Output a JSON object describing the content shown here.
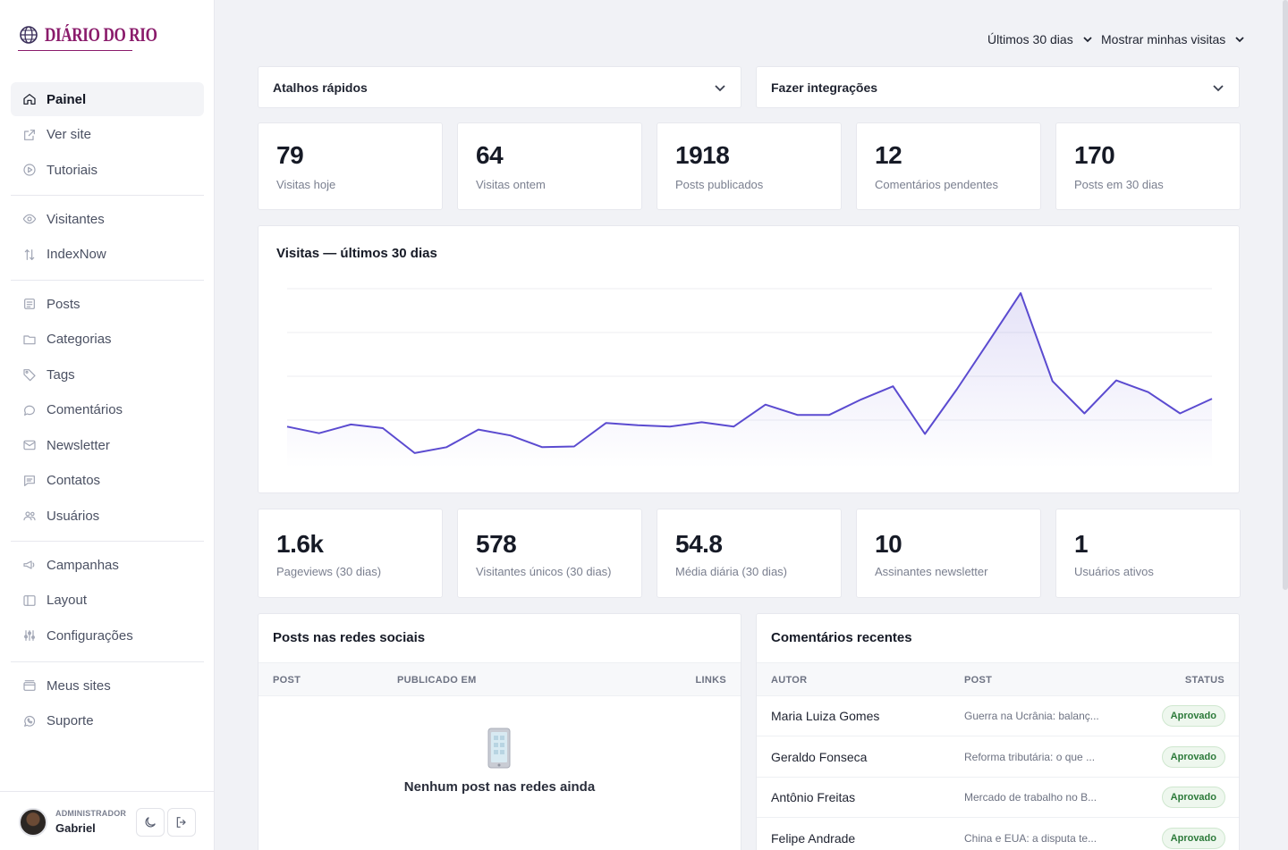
{
  "brand": {
    "name": "DIÁRIO DO RIO"
  },
  "sidebar": {
    "groups": [
      [
        {
          "label": "Painel",
          "icon": "home-icon",
          "active": true
        },
        {
          "label": "Ver site",
          "icon": "external-link-icon"
        },
        {
          "label": "Tutoriais",
          "icon": "play-circle-icon"
        }
      ],
      [
        {
          "label": "Visitantes",
          "icon": "eye-icon"
        },
        {
          "label": "IndexNow",
          "icon": "arrows-up-down-icon"
        }
      ],
      [
        {
          "label": "Posts",
          "icon": "document-list-icon"
        },
        {
          "label": "Categorias",
          "icon": "folder-icon"
        },
        {
          "label": "Tags",
          "icon": "tag-icon"
        },
        {
          "label": "Comentários",
          "icon": "speech-bubble-icon"
        },
        {
          "label": "Newsletter",
          "icon": "envelope-icon"
        },
        {
          "label": "Contatos",
          "icon": "chat-box-icon"
        },
        {
          "label": "Usuários",
          "icon": "users-icon"
        }
      ],
      [
        {
          "label": "Campanhas",
          "icon": "megaphone-icon"
        },
        {
          "label": "Layout",
          "icon": "layout-icon"
        },
        {
          "label": "Configurações",
          "icon": "sliders-icon"
        }
      ],
      [
        {
          "label": "Meus sites",
          "icon": "browser-stack-icon"
        },
        {
          "label": "Suporte",
          "icon": "whatsapp-icon"
        }
      ]
    ]
  },
  "user": {
    "role": "ADMINISTRADOR",
    "name": "Gabriel"
  },
  "filters": {
    "period": "Últimos 30 dias",
    "visits": "Mostrar minhas visitas"
  },
  "accordions": {
    "shortcuts": "Atalhos rápidos",
    "integrations": "Fazer integrações"
  },
  "stats_top": [
    {
      "value": "79",
      "label": "Visitas hoje"
    },
    {
      "value": "64",
      "label": "Visitas ontem"
    },
    {
      "value": "1918",
      "label": "Posts publicados"
    },
    {
      "value": "12",
      "label": "Comentários pendentes"
    },
    {
      "value": "170",
      "label": "Posts em 30 dias"
    }
  ],
  "chart_data": {
    "type": "area",
    "title": "Visitas — últimos 30 dias",
    "xlabel": "",
    "ylabel": "",
    "grid": true,
    "series": [
      {
        "values": [
          52,
          43,
          55,
          50,
          16,
          24,
          48,
          40,
          24,
          25,
          57,
          54,
          52,
          58,
          52,
          82,
          68,
          68,
          89,
          107,
          42,
          103,
          168,
          234,
          114,
          70,
          115,
          99,
          70,
          90
        ]
      }
    ],
    "ylim": [
      0,
      240
    ]
  },
  "stats_bottom": [
    {
      "value": "1.6k",
      "label": "Pageviews (30 dias)"
    },
    {
      "value": "578",
      "label": "Visitantes únicos (30 dias)"
    },
    {
      "value": "54.8",
      "label": "Média diária (30 dias)"
    },
    {
      "value": "10",
      "label": "Assinantes newsletter"
    },
    {
      "value": "1",
      "label": "Usuários ativos"
    }
  ],
  "social": {
    "title": "Posts nas redes sociais",
    "columns": [
      "POST",
      "PUBLICADO EM",
      "LINKS"
    ],
    "empty": "Nenhum post nas redes ainda"
  },
  "comments": {
    "title": "Comentários recentes",
    "columns": [
      "AUTOR",
      "POST",
      "STATUS"
    ],
    "rows": [
      {
        "author": "Maria Luiza Gomes",
        "post": "Guerra na Ucrânia: balanç...",
        "status": "Aprovado"
      },
      {
        "author": "Geraldo Fonseca",
        "post": "Reforma tributária: o que ...",
        "status": "Aprovado"
      },
      {
        "author": "Antônio Freitas",
        "post": "Mercado de trabalho no B...",
        "status": "Aprovado"
      },
      {
        "author": "Felipe Andrade",
        "post": "China e EUA: a disputa te...",
        "status": "Aprovado"
      }
    ]
  },
  "colors": {
    "accent": "#5b4bd0",
    "brand": "#8a1b6b",
    "approved": "#2c7a3a"
  }
}
